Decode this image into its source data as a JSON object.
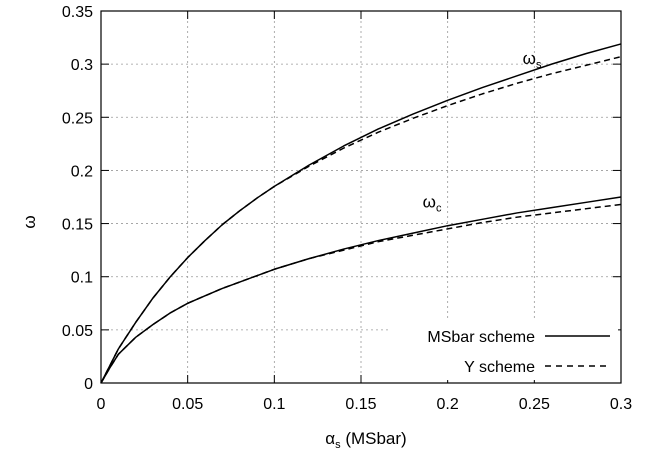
{
  "chart_data": {
    "type": "line",
    "xlabel": {
      "main": "α",
      "sub": "s",
      "rest": " (MSbar)"
    },
    "ylabel": "ω",
    "xlim": [
      0,
      0.3
    ],
    "ylim": [
      0,
      0.35
    ],
    "xticks": [
      "0",
      "0.05",
      "0.1",
      "0.15",
      "0.2",
      "0.25",
      "0.3"
    ],
    "yticks": [
      "0",
      "0.05",
      "0.1",
      "0.15",
      "0.2",
      "0.25",
      "0.3",
      "0.35"
    ],
    "grid": true,
    "legend_position": "bottom-right",
    "legend": [
      {
        "label": "MSbar scheme",
        "style": "solid"
      },
      {
        "label": "Y scheme",
        "style": "dashed"
      }
    ],
    "annotations": [
      {
        "main": "ω",
        "sub": "s",
        "x": 0.2,
        "y": 0.3
      },
      {
        "main": "ω",
        "sub": "c",
        "x": 0.2,
        "y": 0.168
      }
    ],
    "series": [
      {
        "curve": "ω_s",
        "scheme": "MSbar",
        "style": "solid",
        "x": [
          0,
          0.005,
          0.01,
          0.02,
          0.03,
          0.04,
          0.05,
          0.06,
          0.07,
          0.08,
          0.09,
          0.1,
          0.12,
          0.14,
          0.16,
          0.18,
          0.2,
          0.22,
          0.24,
          0.26,
          0.28,
          0.3
        ],
        "y": [
          0,
          0.016,
          0.032,
          0.057,
          0.08,
          0.1,
          0.118,
          0.134,
          0.149,
          0.162,
          0.174,
          0.185,
          0.205,
          0.223,
          0.239,
          0.253,
          0.266,
          0.278,
          0.289,
          0.3,
          0.31,
          0.319
        ]
      },
      {
        "curve": "ω_s",
        "scheme": "Y",
        "style": "dashed",
        "x": [
          0,
          0.005,
          0.01,
          0.02,
          0.03,
          0.04,
          0.05,
          0.06,
          0.07,
          0.08,
          0.09,
          0.1,
          0.12,
          0.14,
          0.16,
          0.18,
          0.2,
          0.22,
          0.24,
          0.26,
          0.28,
          0.3
        ],
        "y": [
          0,
          0.016,
          0.032,
          0.057,
          0.08,
          0.1,
          0.118,
          0.134,
          0.149,
          0.162,
          0.174,
          0.185,
          0.204,
          0.221,
          0.236,
          0.249,
          0.261,
          0.272,
          0.282,
          0.291,
          0.299,
          0.307
        ]
      },
      {
        "curve": "ω_c",
        "scheme": "MSbar",
        "style": "solid",
        "x": [
          0,
          0.005,
          0.01,
          0.02,
          0.03,
          0.04,
          0.05,
          0.06,
          0.07,
          0.08,
          0.09,
          0.1,
          0.12,
          0.14,
          0.16,
          0.18,
          0.2,
          0.22,
          0.24,
          0.26,
          0.28,
          0.3
        ],
        "y": [
          0,
          0.014,
          0.027,
          0.043,
          0.055,
          0.066,
          0.075,
          0.082,
          0.089,
          0.095,
          0.101,
          0.107,
          0.117,
          0.126,
          0.134,
          0.141,
          0.148,
          0.154,
          0.16,
          0.165,
          0.17,
          0.175
        ]
      },
      {
        "curve": "ω_c",
        "scheme": "Y",
        "style": "dashed",
        "x": [
          0,
          0.005,
          0.01,
          0.02,
          0.03,
          0.04,
          0.05,
          0.06,
          0.07,
          0.08,
          0.09,
          0.1,
          0.12,
          0.14,
          0.16,
          0.18,
          0.2,
          0.22,
          0.24,
          0.26,
          0.28,
          0.3
        ],
        "y": [
          0,
          0.014,
          0.027,
          0.043,
          0.055,
          0.066,
          0.075,
          0.082,
          0.089,
          0.095,
          0.101,
          0.107,
          0.117,
          0.125,
          0.133,
          0.139,
          0.145,
          0.151,
          0.156,
          0.16,
          0.164,
          0.168
        ]
      }
    ]
  }
}
